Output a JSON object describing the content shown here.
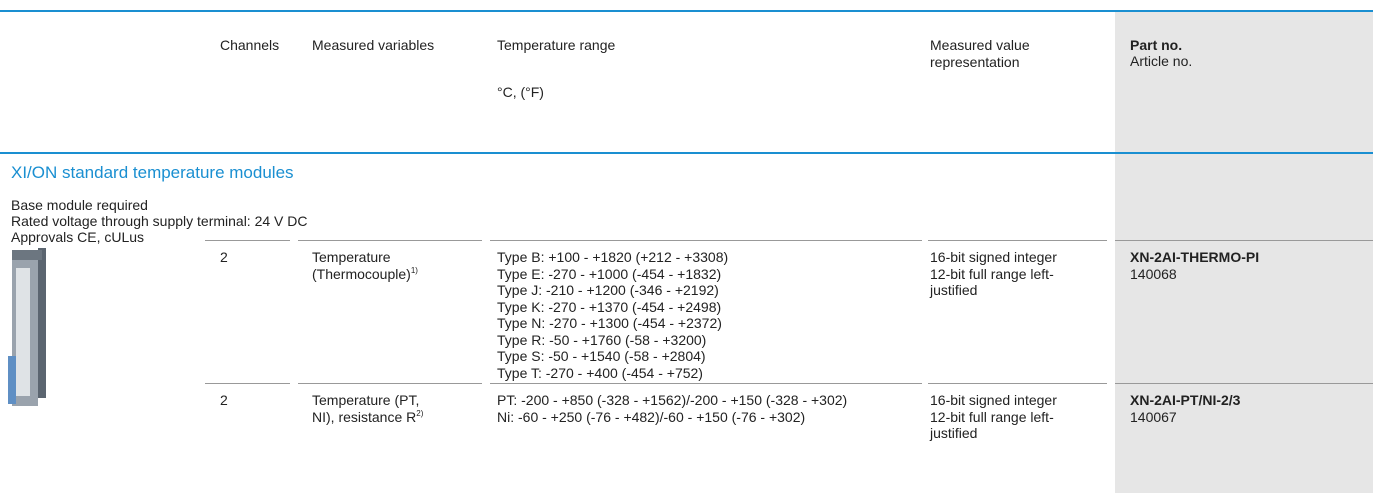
{
  "header": {
    "channels": "Channels",
    "measured_variables": "Measured variables",
    "temperature_range": "Temperature range",
    "temperature_unit": "°C, (°F)",
    "representation": "Measured value representation",
    "part_no": "Part no.",
    "article_no": "Article no."
  },
  "section": {
    "title": "XI/ON standard temperature modules",
    "notes": [
      "Base module required",
      "Rated voltage through supply terminal: 24 V DC",
      "Approvals CE, cULus"
    ]
  },
  "rows": [
    {
      "channels": "2",
      "variable": [
        "Temperature",
        "(Thermocouple)"
      ],
      "footnote": "1)",
      "ranges": [
        "Type B: +100 - +1820 (+212 - +3308)",
        "Type E: -270 - +1000 (-454 - +1832)",
        "Type J: -210 - +1200 (-346 - +2192)",
        "Type K: -270 - +1370 (-454 - +2498)",
        "Type N: -270 - +1300 (-454 - +2372)",
        "Type R: -50 - +1760 (-58 - +3200)",
        "Type S: -50 - +1540 (-58 - +2804)",
        "Type T: -270 - +400 (-454 - +752)"
      ],
      "representation": [
        "16-bit signed integer",
        "12-bit full range left-",
        "justified"
      ],
      "part_no": "XN-2AI-THERMO-PI",
      "article_no": "140068"
    },
    {
      "channels": "2",
      "variable": [
        "Temperature (PT,",
        "NI), resistance R"
      ],
      "footnote": "2)",
      "ranges": [
        "PT: -200 - +850 (-328 - +1562)/-200 - +150 (-328 - +302)",
        "Ni: -60 - +250 (-76 - +482)/-60 - +150 (-76 - +302)"
      ],
      "representation": [
        "16-bit signed integer",
        "12-bit full range left-",
        "justified"
      ],
      "part_no": "XN-2AI-PT/NI-2/3",
      "article_no": "140067"
    }
  ]
}
